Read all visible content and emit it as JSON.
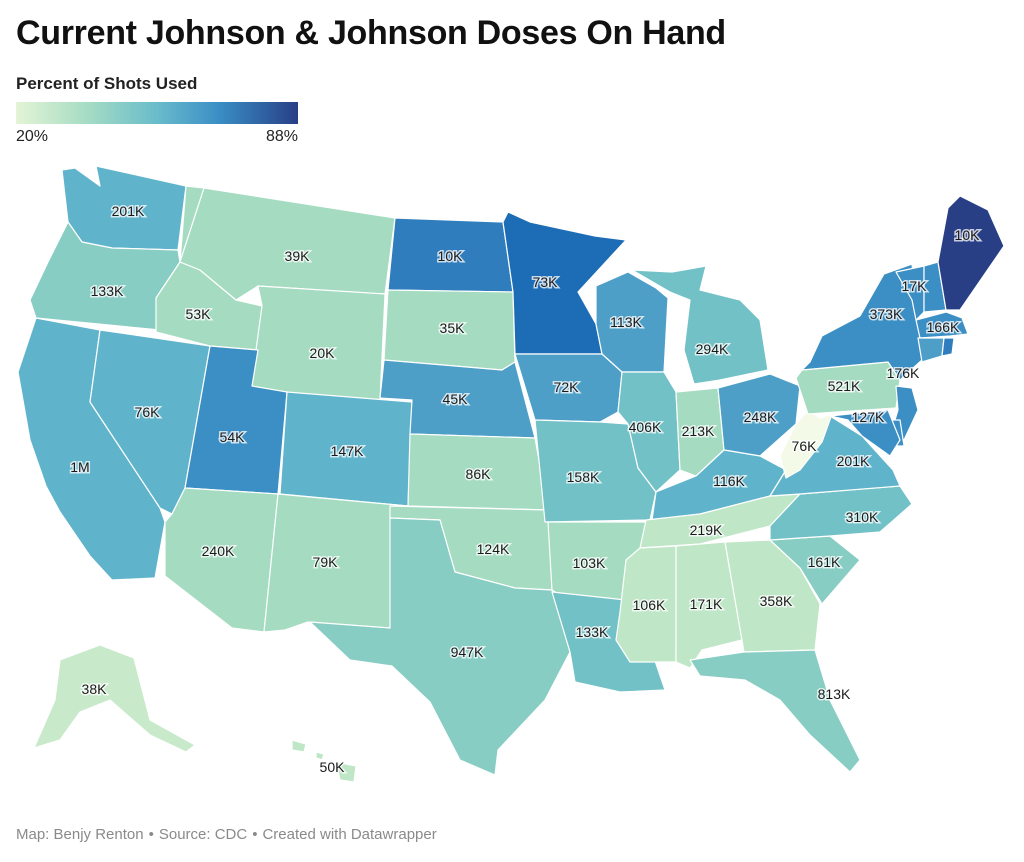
{
  "title": "Current Johnson & Johnson Doses On Hand",
  "legend": {
    "title": "Percent of Shots Used",
    "min_label": "20%",
    "max_label": "88%",
    "min": 20,
    "max": 88,
    "colors": [
      "#e4f4d6",
      "#a6dcc4",
      "#69bccb",
      "#3a8ec5",
      "#283f86"
    ]
  },
  "footer": {
    "map_credit": "Map: Benjy Renton",
    "source": "Source: CDC",
    "created_with": "Created with Datawrapper",
    "separator": "•"
  },
  "states": [
    {
      "id": "WA",
      "doses": "201K",
      "color": "#5fb4cc"
    },
    {
      "id": "OR",
      "doses": "133K",
      "color": "#87cdc3"
    },
    {
      "id": "CA",
      "doses": "1M",
      "color": "#5fb4cc"
    },
    {
      "id": "NV",
      "doses": "76K",
      "color": "#5fb4cc"
    },
    {
      "id": "ID",
      "doses": "53K",
      "color": "#a4dbc1"
    },
    {
      "id": "MT",
      "doses": "39K",
      "color": "#a4dbc1"
    },
    {
      "id": "WY",
      "doses": "20K",
      "color": "#a4dbc1"
    },
    {
      "id": "UT",
      "doses": "54K",
      "color": "#3c8fc4"
    },
    {
      "id": "AZ",
      "doses": "240K",
      "color": "#a4dbc1"
    },
    {
      "id": "CO",
      "doses": "147K",
      "color": "#5fb4cc"
    },
    {
      "id": "NM",
      "doses": "79K",
      "color": "#a4dbc1"
    },
    {
      "id": "ND",
      "doses": "10K",
      "color": "#2f7dbd"
    },
    {
      "id": "SD",
      "doses": "35K",
      "color": "#a4dbc1"
    },
    {
      "id": "NE",
      "doses": "45K",
      "color": "#4d9fc8"
    },
    {
      "id": "KS",
      "doses": "86K",
      "color": "#a4dbc1"
    },
    {
      "id": "OK",
      "doses": "124K",
      "color": "#a4dbc1"
    },
    {
      "id": "TX",
      "doses": "947K",
      "color": "#87cdc3"
    },
    {
      "id": "MN",
      "doses": "73K",
      "color": "#1c6db5"
    },
    {
      "id": "IA",
      "doses": "72K",
      "color": "#4d9fc8"
    },
    {
      "id": "MO",
      "doses": "158K",
      "color": "#72c1c6"
    },
    {
      "id": "AR",
      "doses": "103K",
      "color": "#a4dbc1"
    },
    {
      "id": "LA",
      "doses": "133K",
      "color": "#72c1c6"
    },
    {
      "id": "WI",
      "doses": "113K",
      "color": "#4d9fc8"
    },
    {
      "id": "IL",
      "doses": "406K",
      "color": "#72c1c6"
    },
    {
      "id": "MI",
      "doses": "294K",
      "color": "#72c1c6"
    },
    {
      "id": "IN",
      "doses": "213K",
      "color": "#a4dbc1"
    },
    {
      "id": "OH",
      "doses": "248K",
      "color": "#4d9fc8"
    },
    {
      "id": "KY",
      "doses": "116K",
      "color": "#5fb4cc"
    },
    {
      "id": "TN",
      "doses": "219K",
      "color": "#bfe6c6"
    },
    {
      "id": "MS",
      "doses": "106K",
      "color": "#bfe6c6"
    },
    {
      "id": "AL",
      "doses": "171K",
      "color": "#bfe6c6"
    },
    {
      "id": "GA",
      "doses": "358K",
      "color": "#bfe6c6"
    },
    {
      "id": "FL",
      "doses": "813K",
      "color": "#87cdc3"
    },
    {
      "id": "SC",
      "doses": "161K",
      "color": "#87cdc3"
    },
    {
      "id": "NC",
      "doses": "310K",
      "color": "#72c1c6"
    },
    {
      "id": "VA",
      "doses": "201K",
      "color": "#5fb4cc"
    },
    {
      "id": "WV",
      "doses": "76K",
      "color": "#f4fae8"
    },
    {
      "id": "PA",
      "doses": "521K",
      "color": "#a4dbc1"
    },
    {
      "id": "NY",
      "doses": "373K",
      "color": "#3c8fc4"
    },
    {
      "id": "VT",
      "doses": "17K",
      "color": "#3c8fc4"
    },
    {
      "id": "NH",
      "doses": "",
      "color": "#3c8fc4"
    },
    {
      "id": "ME",
      "doses": "10K",
      "color": "#283f86"
    },
    {
      "id": "MA",
      "doses": "166K",
      "color": "#3c8fc4"
    },
    {
      "id": "CT",
      "doses": "",
      "color": "#4d9fc8"
    },
    {
      "id": "RI",
      "doses": "",
      "color": "#2f7dbd"
    },
    {
      "id": "NJ",
      "doses": "176K",
      "color": "#3c8fc4"
    },
    {
      "id": "DE",
      "doses": "",
      "color": "#3c8fc4"
    },
    {
      "id": "MD",
      "doses": "127K",
      "color": "#3c8fc4"
    },
    {
      "id": "AK",
      "doses": "38K",
      "color": "#c8eacb"
    },
    {
      "id": "HI",
      "doses": "50K",
      "color": "#bfe6c6"
    }
  ]
}
